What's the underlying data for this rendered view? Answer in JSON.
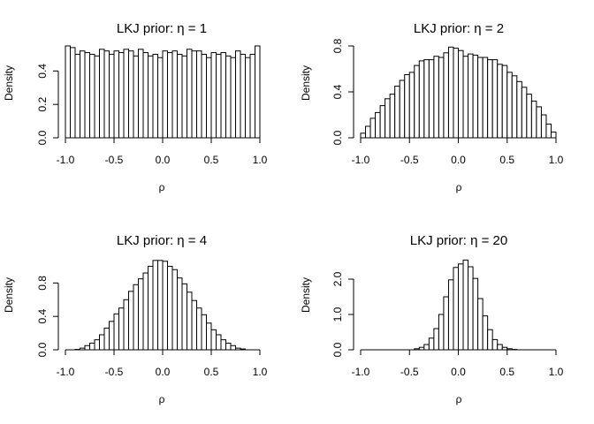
{
  "chart_data": [
    {
      "type": "bar",
      "title": "LKJ prior: η = 1",
      "xlabel": "ρ",
      "ylabel": "Density",
      "xlim": [
        -1,
        1
      ],
      "ylim": [
        0,
        0.55
      ],
      "xticks": [
        "-1.0",
        "-0.5",
        "0.0",
        "0.5",
        "1.0"
      ],
      "yticks": [
        "0.0",
        "0.2",
        "0.4"
      ],
      "bin_width": 0.05,
      "values": [
        0.55,
        0.54,
        0.5,
        0.52,
        0.51,
        0.5,
        0.49,
        0.53,
        0.52,
        0.5,
        0.52,
        0.51,
        0.53,
        0.52,
        0.49,
        0.53,
        0.51,
        0.49,
        0.5,
        0.48,
        0.52,
        0.51,
        0.52,
        0.5,
        0.49,
        0.53,
        0.52,
        0.52,
        0.5,
        0.48,
        0.51,
        0.5,
        0.51,
        0.49,
        0.48,
        0.52,
        0.5,
        0.48,
        0.5,
        0.55
      ]
    },
    {
      "type": "bar",
      "title": "LKJ prior: η = 2",
      "xlabel": "ρ",
      "ylabel": "Density",
      "xlim": [
        -1,
        1
      ],
      "ylim": [
        0,
        0.8
      ],
      "xticks": [
        "-1.0",
        "-0.5",
        "0.0",
        "0.5",
        "1.0"
      ],
      "yticks": [
        "0.0",
        "0.4",
        "0.8"
      ],
      "bin_width": 0.05,
      "values": [
        0.04,
        0.1,
        0.17,
        0.22,
        0.28,
        0.34,
        0.38,
        0.45,
        0.5,
        0.55,
        0.57,
        0.63,
        0.67,
        0.68,
        0.68,
        0.71,
        0.7,
        0.74,
        0.79,
        0.78,
        0.76,
        0.71,
        0.73,
        0.72,
        0.7,
        0.7,
        0.68,
        0.68,
        0.64,
        0.63,
        0.57,
        0.54,
        0.49,
        0.44,
        0.38,
        0.32,
        0.27,
        0.2,
        0.12,
        0.05
      ]
    },
    {
      "type": "bar",
      "title": "LKJ prior: η = 4",
      "xlabel": "ρ",
      "ylabel": "Density",
      "xlim": [
        -1,
        1
      ],
      "ylim": [
        0,
        1.1
      ],
      "xticks": [
        "-1.0",
        "-0.5",
        "0.0",
        "0.5",
        "1.0"
      ],
      "yticks": [
        "0.0",
        "0.4",
        "0.8"
      ],
      "bin_width": 0.05,
      "values": [
        0.0,
        0.0,
        0.005,
        0.02,
        0.05,
        0.08,
        0.12,
        0.18,
        0.26,
        0.34,
        0.43,
        0.5,
        0.6,
        0.7,
        0.78,
        0.85,
        0.92,
        1.0,
        1.07,
        1.07,
        1.06,
        1.0,
        0.96,
        0.86,
        0.79,
        0.69,
        0.59,
        0.5,
        0.42,
        0.32,
        0.24,
        0.18,
        0.12,
        0.08,
        0.05,
        0.02,
        0.01,
        0.0,
        0.0,
        0.0
      ]
    },
    {
      "type": "bar",
      "title": "LKJ prior: η = 20",
      "xlabel": "ρ",
      "ylabel": "Density",
      "xlim": [
        -1,
        1
      ],
      "ylim": [
        0,
        2.6
      ],
      "xticks": [
        "-1.0",
        "-0.5",
        "0.0",
        "0.5",
        "1.0"
      ],
      "yticks": [
        "0.0",
        "1.0",
        "2.0"
      ],
      "bin_width": 0.05,
      "values": [
        0,
        0,
        0,
        0,
        0,
        0,
        0,
        0,
        0,
        0,
        0,
        0.03,
        0.07,
        0.15,
        0.33,
        0.6,
        1.0,
        1.5,
        1.98,
        2.33,
        2.43,
        2.54,
        2.35,
        2.02,
        1.45,
        0.96,
        0.57,
        0.29,
        0.15,
        0.07,
        0.03,
        0.01,
        0,
        0,
        0,
        0,
        0,
        0,
        0,
        0
      ]
    }
  ]
}
